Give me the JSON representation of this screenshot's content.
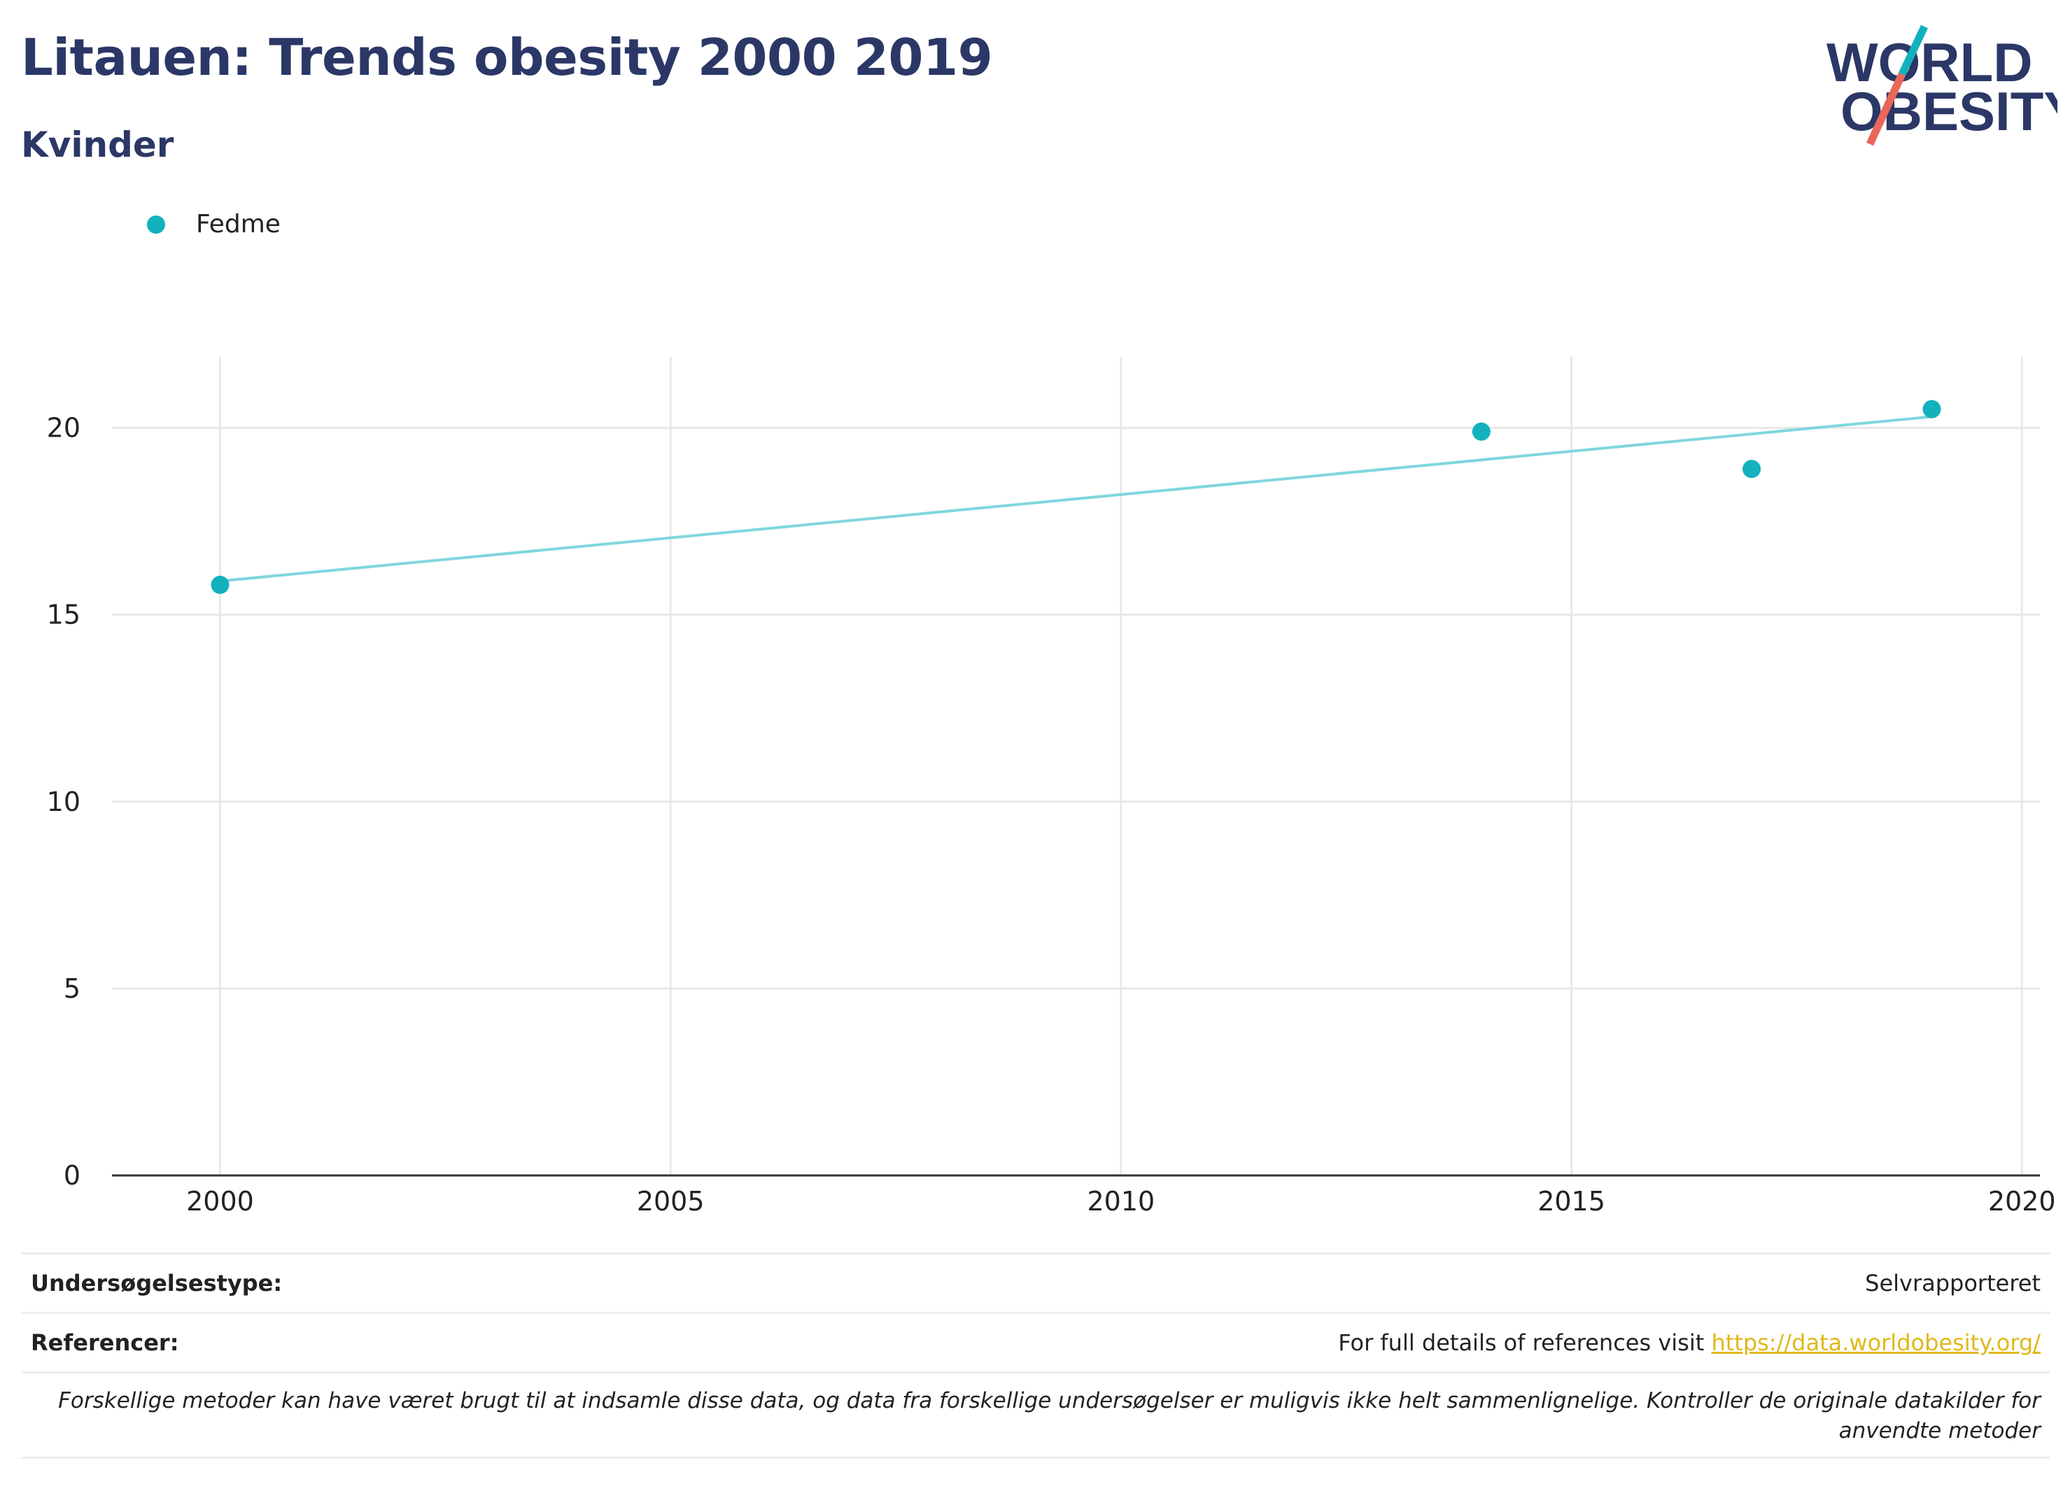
{
  "header": {
    "title": "Litauen: Trends obesity 2000 2019",
    "subtitle": "Kvinder"
  },
  "logo": {
    "line1": "WORLD",
    "line2": "OBESITY"
  },
  "colors": {
    "series": "#12b1bd",
    "trend": "#7fd6dd",
    "title": "#2b3766",
    "grid": "#e8e8e8",
    "link": "#e0b81a"
  },
  "chart_data": {
    "type": "scatter",
    "series": [
      {
        "name": "Fedme",
        "x": [
          2000,
          2014,
          2017,
          2019
        ],
        "y": [
          15.8,
          19.9,
          18.9,
          20.5
        ]
      }
    ],
    "trendline": {
      "x": [
        2000,
        2019
      ],
      "y": [
        15.9,
        20.3
      ]
    },
    "xlim": [
      1998.8,
      2020.2
    ],
    "ylim": [
      0,
      21.9
    ],
    "xticks": [
      2000,
      2005,
      2010,
      2015,
      2020
    ],
    "yticks": [
      0,
      5,
      10,
      15,
      20
    ],
    "grid": true,
    "legend_position": "top-left"
  },
  "footer": {
    "survey_label": "Undersøgelsestype:",
    "survey_value": "Selvrapporteret",
    "refs_label": "Referencer:",
    "refs_text": "For full details of references visit ",
    "refs_link": "https://data.worldobesity.org/",
    "note": "Forskellige metoder kan have været brugt til at indsamle disse data, og data fra forskellige undersøgelser er muligvis ikke helt sammenlignelige. Kontroller de originale datakilder for anvendte metoder"
  }
}
